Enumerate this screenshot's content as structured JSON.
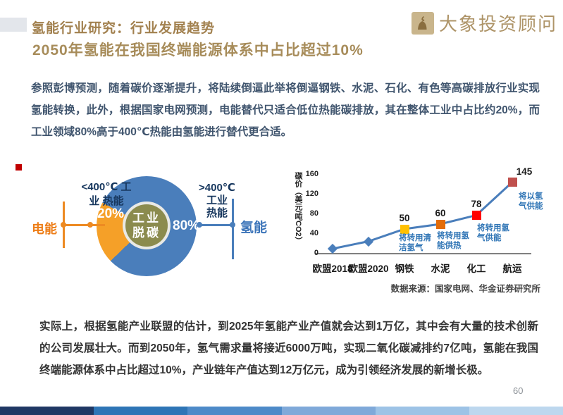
{
  "page": {
    "number": "60"
  },
  "header": {
    "title": "氢能行业研究：行业发展趋势",
    "subtitle": "2050年氢能在我国终端能源体系中占比超过10%",
    "logo_text": "大象投资顾问",
    "brand_color": "#AE9468"
  },
  "intro_paragraph": "参照彭博预测，随着碳价逐渐提升，将陆续倒逼此举将倒逼钢铁、水泥、石化、有色等高碳排放行业实现氢能转换，此外，根据国家电网预测，电能替代只适合低位热能碳排放，其在整体工业中占比约20%，而工业领域80%高于400℃热能由氢能进行替代更合适。",
  "pie_figure": {
    "center_label": "工业\n脱碳",
    "slice_label_small": "20%",
    "slice_label_big": "80%",
    "left_callout": "<400℃ 工\n业 热能",
    "right_callout": ">400℃\n工业\n热能",
    "left_axis_label": "电能",
    "right_axis_label": "氢能",
    "colors": {
      "donut_blue": "#4A7EBB",
      "slice_orange": "#F5A028",
      "center_olive": "#8B8B4E",
      "electric_orange": "#ED7D17",
      "hydrogen_blue": "#3B74B9",
      "callout_navy": "#17375E"
    }
  },
  "line_figure": {
    "ylabel": "碳价（美元/吨CO2）",
    "source": "数据来源：国家电网、华金证券研究所",
    "annotations": [
      "将转用清\n洁氢气",
      "将转用氢\n能供热",
      "将转用氢\n气供能",
      "将以氢\n气供能"
    ]
  },
  "chart_data": [
    {
      "type": "pie",
      "title": "工业脱碳",
      "slices": [
        {
          "label": "<400℃ 工业热能（电能）",
          "value": 20,
          "color": "#F5A028"
        },
        {
          "label": ">400℃ 工业热能（氢能）",
          "value": 80,
          "color": "#4A7EBB"
        }
      ]
    },
    {
      "type": "line",
      "categories": [
        "欧盟2018",
        "欧盟2020",
        "钢铁",
        "水泥",
        "化工",
        "航运"
      ],
      "values": [
        10,
        25,
        50,
        60,
        78,
        145
      ],
      "value_labels": [
        "",
        "",
        "50",
        "60",
        "78",
        "145"
      ],
      "ylabel": "碳价（美元/吨CO2）",
      "yticks": [
        0,
        40,
        80,
        120,
        160
      ],
      "ylim": [
        0,
        160
      ],
      "line_color": "#4A7EBB",
      "marker_colors": [
        "#4A7EBB",
        "#4A7EBB",
        "#FFC000",
        "#E36C09",
        "#FF0000",
        "#C0504D"
      ],
      "annotations": [
        {
          "category": "钢铁",
          "text": "将转用清洁氢气"
        },
        {
          "category": "水泥",
          "text": "将转用氢能供热"
        },
        {
          "category": "化工",
          "text": "将转用氢气供能"
        },
        {
          "category": "航运",
          "text": "将以氢气供能"
        }
      ]
    }
  ],
  "closing_paragraph": "实际上，根据氢能产业联盟的估计，到2025年氢能产业产值就会达到1万亿，其中会有大量的技术创新的公司发展壮大。而到2050年，氢气需求量将接近6000万吨，实现二氧化碳减排约7亿吨，氢能在我国终端能源体系中占比超过10%，产业链年产值达到12万亿元，成为引领经济发展的新增长极。",
  "footer": {
    "bar_colors": [
      "#1F3864",
      "#2E75B6",
      "#4D8AC8",
      "#7FA9D9",
      "#9DC3E6",
      "#BDD7EE"
    ]
  }
}
